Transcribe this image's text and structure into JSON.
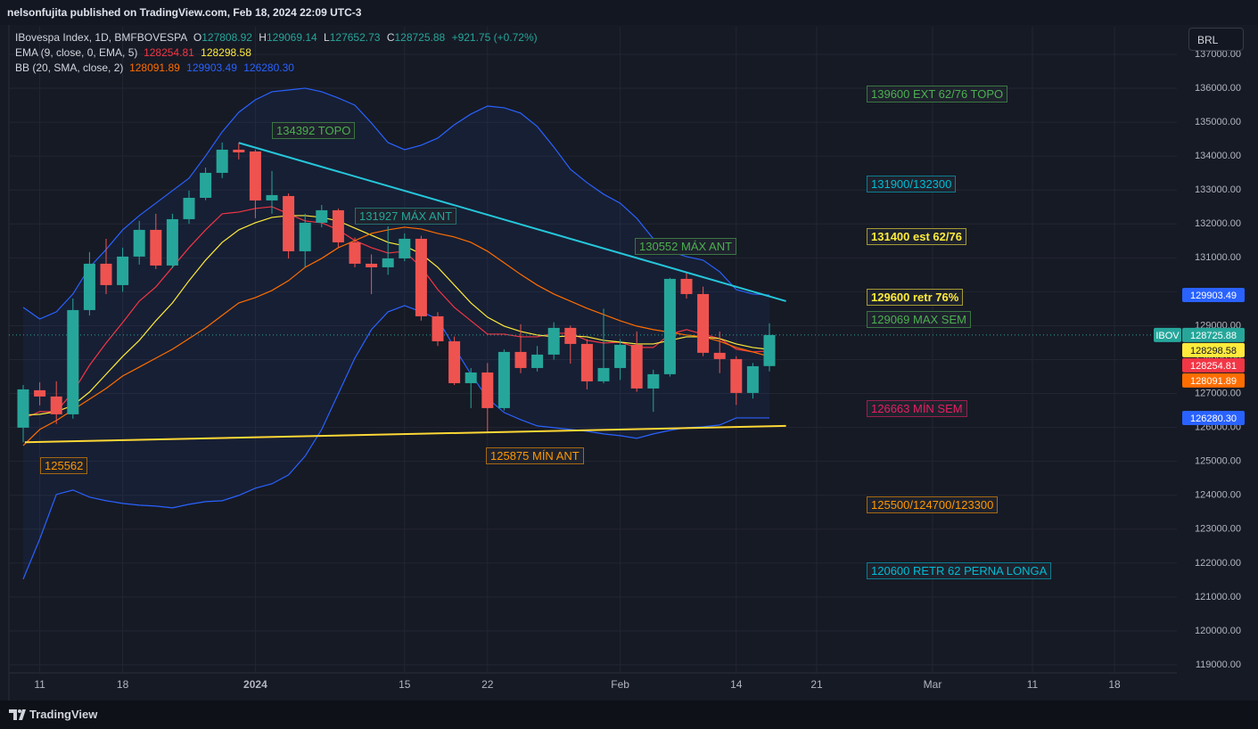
{
  "header": {
    "title": "nelsonfujita published on TradingView.com, Feb 18, 2024 22:09 UTC-3"
  },
  "currency_button": "BRL",
  "footer": {
    "brand": "TradingView"
  },
  "chart_data": {
    "type": "candlestick",
    "symbol": "IBovespa Index, 1D, BMFBOVESPA",
    "symbol_tag": "IBOV",
    "ohlc_keys": [
      "O",
      "H",
      "L",
      "C"
    ],
    "change": "+921.75 (+0.72%)",
    "categories": [
      null,
      "11",
      null,
      null,
      null,
      null,
      "18",
      null,
      null,
      null,
      null,
      null,
      null,
      null,
      "2024",
      null,
      null,
      null,
      null,
      null,
      null,
      null,
      null,
      "15",
      null,
      null,
      null,
      null,
      "22",
      null,
      null,
      null,
      null,
      null,
      null,
      null,
      "Feb",
      null,
      null,
      null,
      null,
      null,
      null,
      "14",
      null,
      null
    ],
    "future_categories": [
      "21",
      "Mar",
      "11",
      "18"
    ],
    "open": [
      125993,
      127096,
      126912,
      126387,
      129460,
      130827,
      130196,
      131037,
      131825,
      130774,
      132140,
      132770,
      133506,
      134189,
      134137,
      132692,
      132823,
      131194,
      132035,
      132403,
      131457,
      130827,
      130721,
      130984,
      131562,
      129277,
      128541,
      127305,
      127620,
      126570,
      128226,
      127752,
      128147,
      128935,
      128462,
      127359,
      127752,
      128437,
      127148,
      127569,
      130380,
      129933,
      128200,
      128016,
      127017,
      127808.92
    ],
    "high": [
      127250,
      127330,
      127360,
      129800,
      131170,
      131560,
      131300,
      132090,
      132300,
      132300,
      132980,
      133660,
      134400,
      134392,
      134190,
      133560,
      132900,
      132300,
      132560,
      132450,
      131600,
      131100,
      131927,
      131720,
      131650,
      129400,
      128680,
      127750,
      127900,
      128300,
      129040,
      128400,
      129100,
      129000,
      128600,
      129500,
      128600,
      128830,
      127700,
      130410,
      130552,
      130150,
      128830,
      128100,
      127900,
      129069.14
    ],
    "low": [
      125562,
      126650,
      126100,
      126260,
      129300,
      129930,
      130000,
      130800,
      130670,
      130700,
      132000,
      132700,
      133350,
      133900,
      132170,
      132300,
      130980,
      130720,
      131900,
      131300,
      130720,
      129930,
      130500,
      130900,
      129150,
      128400,
      127250,
      126570,
      125875,
      126500,
      127600,
      127650,
      128000,
      127880,
      127120,
      127300,
      127400,
      127050,
      126460,
      127500,
      129800,
      128100,
      127600,
      126663,
      126850,
      127652.73
    ],
    "close": [
      127122,
      126912,
      126387,
      129460,
      130827,
      130196,
      131037,
      131825,
      130774,
      132140,
      132770,
      133506,
      134189,
      134110,
      132692,
      132850,
      131194,
      132035,
      132403,
      131457,
      130827,
      130721,
      130984,
      131562,
      129277,
      128541,
      127305,
      127620,
      126570,
      128226,
      127752,
      128147,
      128935,
      128462,
      127359,
      127752,
      128437,
      127148,
      127569,
      130380,
      129933,
      128200,
      128016,
      127017,
      127805,
      128725.88
    ],
    "up_color": "#26a69a",
    "down_color": "#ef5350",
    "indicators": [
      {
        "name": "EMA (9, close, 0, EMA, 5)",
        "series": [
          {
            "color": "#f23645",
            "values": [
              126256,
              126466,
              126466,
              127044,
              127832,
              128489,
              129093,
              129723,
              130144,
              130721,
              131299,
              131825,
              132298,
              132350,
              132455,
              132508,
              132298,
              132088,
              132035,
              131825,
              131510,
              131299,
              131142,
              131194,
              130721,
              130065,
              129539,
              129145,
              128751,
              128751,
              128672,
              128672,
              128777,
              128777,
              128567,
              128489,
              128515,
              128357,
              128357,
              128751,
              128883,
              128751,
              128620,
              128305,
              128226,
              128254.81
            ]
          },
          {
            "color": "#ffeb3b",
            "values": [
              126361,
              126387,
              126466,
              126650,
              127044,
              127569,
              128094,
              128567,
              129145,
              129671,
              130327,
              130932,
              131457,
              131825,
              132035,
              132193,
              132245,
              132245,
              132193,
              132088,
              131877,
              131667,
              131457,
              131352,
              131116,
              130721,
              130196,
              129671,
              129250,
              128988,
              128830,
              128725,
              128672,
              128699,
              128672,
              128567,
              128515,
              128462,
              128462,
              128567,
              128672,
              128672,
              128620,
              128462,
              128357,
              128298.58
            ]
          }
        ]
      },
      {
        "name": "BB (20, SMA, close, 2)",
        "series": [
          {
            "color": "#ff6d00",
            "values": [
              125467,
              125940,
              126203,
              126518,
              126834,
              127149,
              127517,
              127779,
              128042,
              128305,
              128620,
              128935,
              129303,
              129671,
              129828,
              130038,
              130327,
              130721,
              130984,
              131299,
              131510,
              131720,
              131825,
              131904,
              131851,
              131720,
              131615,
              131457,
              131194,
              130853,
              130511,
              130196,
              129933,
              129723,
              129513,
              129329,
              129145,
              128988,
              128883,
              128804,
              128725,
              128672,
              128541,
              128357,
              128226,
              128091.89
            ]
          },
          {
            "color": "#2962ff",
            "values": [
              129539,
              129198,
              129408,
              129933,
              130721,
              131247,
              131825,
              132245,
              132613,
              132981,
              133348,
              134005,
              134715,
              135292,
              135660,
              135897,
              135949,
              136002,
              135897,
              135713,
              135503,
              134977,
              134399,
              134189,
              134320,
              134531,
              134925,
              135240,
              135476,
              135424,
              135266,
              134872,
              134268,
              133611,
              133217,
              132876,
              132613,
              132166,
              131562,
              131194,
              131037,
              130932,
              130590,
              130065,
              129933,
              129903.49
            ]
          },
          {
            "color": "#2962ff",
            "values": [
              121527,
              122709,
              124023,
              124154,
              123944,
              123839,
              123760,
              123707,
              123681,
              123629,
              123734,
              123812,
              123839,
              123996,
              124207,
              124338,
              124601,
              125152,
              125940,
              126991,
              128042,
              128883,
              129408,
              129592,
              129408,
              129198,
              128357,
              127569,
              126860,
              126439,
              126229,
              126045,
              125993,
              125940,
              125888,
              125809,
              125756,
              125678,
              125809,
              125914,
              125993,
              126019,
              126072,
              126280,
              126280,
              126280.3
            ],
            "value_labels": [
              null,
              null,
              null,
              null,
              null,
              null,
              null,
              null,
              null,
              null,
              null,
              null,
              null,
              null,
              null,
              null,
              null,
              null,
              null,
              null,
              null,
              null,
              null,
              null,
              null,
              null,
              null,
              null,
              null,
              null,
              null,
              null,
              null,
              null,
              null,
              null,
              null,
              null,
              null,
              null,
              null,
              null,
              null,
              null,
              null,
              "126280.30"
            ]
          }
        ]
      }
    ],
    "trendlines": [
      {
        "color": "#26c6da",
        "from": 134392,
        "to": 129723
      },
      {
        "color": "#fdd835",
        "from": 125562,
        "to": 126045
      }
    ],
    "annotations": [
      {
        "text": "134392 TOPO",
        "color": "#4caf50"
      },
      {
        "text": "131927 MÁX ANT",
        "color": "#26a69a"
      },
      {
        "text": "130552 MÁX ANT",
        "color": "#4caf50"
      },
      {
        "text": "125562",
        "color": "#ff9800"
      },
      {
        "text": "125875 MÍN ANT",
        "color": "#ff9800"
      },
      {
        "text": "139600 EXT 62/76 TOPO",
        "color": "#4caf50"
      },
      {
        "text": "131900/132300",
        "color": "#00bcd4"
      },
      {
        "text": "131400 est 62/76",
        "color": "#ffeb3b",
        "bold": true
      },
      {
        "text": "129600 retr 76%",
        "color": "#ffeb3b",
        "bold": true
      },
      {
        "text": "129069 MAX SEM",
        "color": "#4caf50"
      },
      {
        "text": "126663 MÍN SEM",
        "color": "#e91e63"
      },
      {
        "text": "125500/124700/123300",
        "color": "#ff9800"
      },
      {
        "text": "120600 RETR 62 PERNA LONGA",
        "color": "#00bcd4"
      }
    ],
    "ylim": [
      118764,
      137814
    ],
    "yticks": [
      {
        "value": 137000,
        "label": "137000.00"
      },
      {
        "value": 136000,
        "label": "136000.00"
      },
      {
        "value": 135000,
        "label": "135000.00"
      },
      {
        "value": 134000,
        "label": "134000.00"
      },
      {
        "value": 133000,
        "label": "133000.00"
      },
      {
        "value": 132000,
        "label": "132000.00"
      },
      {
        "value": 131000,
        "label": "131000.00"
      },
      {
        "value": 130000,
        "label": "130000.00"
      },
      {
        "value": 129000,
        "label": "129000.00"
      },
      {
        "value": 128000,
        "label": "128000.00"
      },
      {
        "value": 127000,
        "label": "127000.00"
      },
      {
        "value": 126000,
        "label": "126000.00"
      },
      {
        "value": 125000,
        "label": "125000.00"
      },
      {
        "value": 124000,
        "label": "124000.00"
      },
      {
        "value": 123000,
        "label": "123000.00"
      },
      {
        "value": 122000,
        "label": "122000.00"
      },
      {
        "value": 121000,
        "label": "121000.00"
      },
      {
        "value": 120000,
        "label": "120000.00"
      },
      {
        "value": 119000,
        "label": "119000.00"
      }
    ],
    "grid": true
  }
}
